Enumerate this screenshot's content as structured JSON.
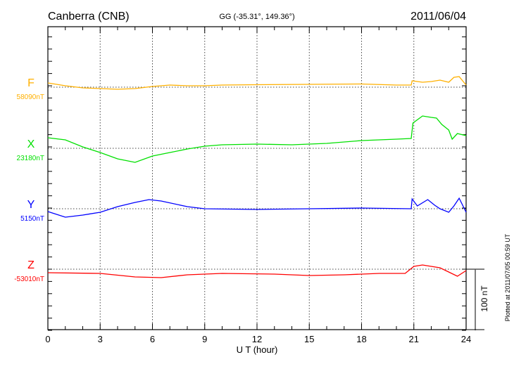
{
  "chart_data": {
    "type": "line",
    "title": "Canberra (CNB)",
    "subtitle": "GG (-35.31°, 149.36°)",
    "date": "2011/06/04",
    "xlabel": "U T (hour)",
    "xlim": [
      0,
      24
    ],
    "xticks": [
      "0",
      "3",
      "6",
      "9",
      "12",
      "15",
      "18",
      "21",
      "24"
    ],
    "scale_bar_label": "100 nT",
    "scale_bar_nT": 100,
    "plotted_note": "Plotted at 2011/07/05 00:59 UT",
    "series": [
      {
        "name": "F",
        "baseline_label": "58090nT",
        "color": "#ffb000",
        "t": [
          0,
          1,
          2,
          3,
          4,
          5,
          6,
          7,
          8,
          9,
          10,
          12,
          15,
          18,
          20,
          20.85,
          20.9,
          21.5,
          22,
          22.5,
          23,
          23.3,
          23.6,
          24
        ],
        "nT": [
          6.9,
          2.3,
          -1.1,
          -2.3,
          -3.4,
          -2.3,
          1.1,
          3.4,
          2.3,
          2.3,
          3.4,
          4,
          4.6,
          5.2,
          3.4,
          3.4,
          10.3,
          8,
          9.2,
          11.5,
          8,
          16.1,
          17.2,
          3.4
        ]
      },
      {
        "name": "X",
        "baseline_label": "23180nT",
        "color": "#00e000",
        "t": [
          0,
          1,
          2,
          3,
          4,
          5,
          6,
          7,
          8,
          9,
          10,
          12,
          14,
          16,
          18,
          20,
          20.85,
          20.95,
          21.5,
          22,
          22.3,
          22.6,
          23,
          23.2,
          23.5,
          24
        ],
        "nT": [
          17.2,
          13.8,
          2.3,
          -6.9,
          -17.2,
          -23,
          -12.6,
          -6.9,
          -1.1,
          3.4,
          5.7,
          6.9,
          5.7,
          8,
          12.6,
          14.9,
          16.1,
          41.4,
          52.9,
          50.6,
          49.4,
          39.1,
          29.9,
          14.9,
          24.1,
          20.7
        ]
      },
      {
        "name": "Y",
        "baseline_label": "5150nT",
        "color": "#0000ff",
        "t": [
          0,
          1,
          2,
          3,
          4,
          5,
          5.8,
          6.5,
          8,
          9,
          12,
          15,
          18,
          20.85,
          20.9,
          21.2,
          21.8,
          22.2,
          22.5,
          23,
          23.3,
          23.6,
          24
        ],
        "nT": [
          -4.6,
          -13.8,
          -10.3,
          -5.7,
          3.4,
          10.3,
          14.9,
          12.6,
          3.4,
          0,
          -1.1,
          0,
          1.1,
          0,
          16.1,
          4.6,
          14.9,
          5.7,
          0,
          -5.7,
          4.6,
          17.2,
          -5.7
        ]
      },
      {
        "name": "Z",
        "baseline_label": "-53010nT",
        "color": "#ff0000",
        "t": [
          0,
          3,
          5,
          6.5,
          8,
          10,
          13,
          15,
          17,
          19,
          20.5,
          21,
          21.5,
          22.5,
          23,
          23.5,
          24
        ],
        "nT": [
          -5.7,
          -6.9,
          -12.6,
          -13.8,
          -9.2,
          -6.9,
          -8,
          -10.3,
          -9.2,
          -6.9,
          -6.9,
          4.6,
          6.9,
          2.3,
          -4.6,
          -11.5,
          -2.3
        ]
      }
    ]
  }
}
